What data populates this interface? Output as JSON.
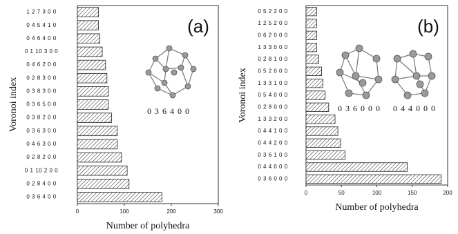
{
  "chart_data": [
    {
      "type": "barh",
      "panel_label": "(a)",
      "x_label": "Number of polyhedra",
      "y_label": "Voronoi index",
      "color": "#222222",
      "categories": [
        "1 2 7 3 0 0",
        "0 4 5 4 1 0",
        "0 4 6 4 0 0",
        "0 1 10 3 0 0",
        "0 4 6 2 0 0",
        "0 2 8 3 0 0",
        "0 3 8 3 0 0",
        "0 3 6 5 0 0",
        "0 3 8 2 0 0",
        "0 3 6 3 0 0",
        "0 4 6 3 0 0",
        "0 2 8 2 0 0",
        "0 1 10 2 0 0",
        "0 2 8 4 0 0",
        "0 3 6 4 0 0"
      ],
      "values": [
        45,
        45,
        48,
        53,
        60,
        63,
        66,
        66,
        73,
        85,
        85,
        94,
        106,
        110,
        180
      ],
      "xlim": [
        0,
        300
      ],
      "xticks": [
        0,
        100,
        200,
        300
      ],
      "annotations": [
        "0 3 6 4 0 0"
      ]
    },
    {
      "type": "barh",
      "panel_label": "(b)",
      "x_label": "Number of polyhedra",
      "y_label": "Voronoi index",
      "color": "#222222",
      "categories": [
        "0 5 2 2 0 0",
        "1 2 5 2 0 0",
        "0 6 2 0 0 0",
        "1 3 3 0 0 0",
        "0 2 8 1 0 0",
        "0 5 2 0 0 0",
        "1 3 3 1 0 0",
        "0 5 4 0 0 0",
        "0 2 8 0 0 0",
        "1 3 3 2 0 0",
        "0 4 4 1 0 0",
        "0 4 4 2 0 0",
        "0 3 6 1 0 0",
        "0 4 4 0 0 0",
        "0 3 6 0 0 0"
      ],
      "values": [
        15,
        15,
        15,
        15,
        18,
        22,
        24,
        27,
        32,
        41,
        45,
        49,
        55,
        143,
        191
      ],
      "xlim": [
        0,
        200
      ],
      "xticks": [
        0,
        50,
        100,
        150,
        200
      ],
      "annotations": [
        "0 3 6 0 0 0",
        "0 4 4 0 0 0"
      ]
    }
  ]
}
